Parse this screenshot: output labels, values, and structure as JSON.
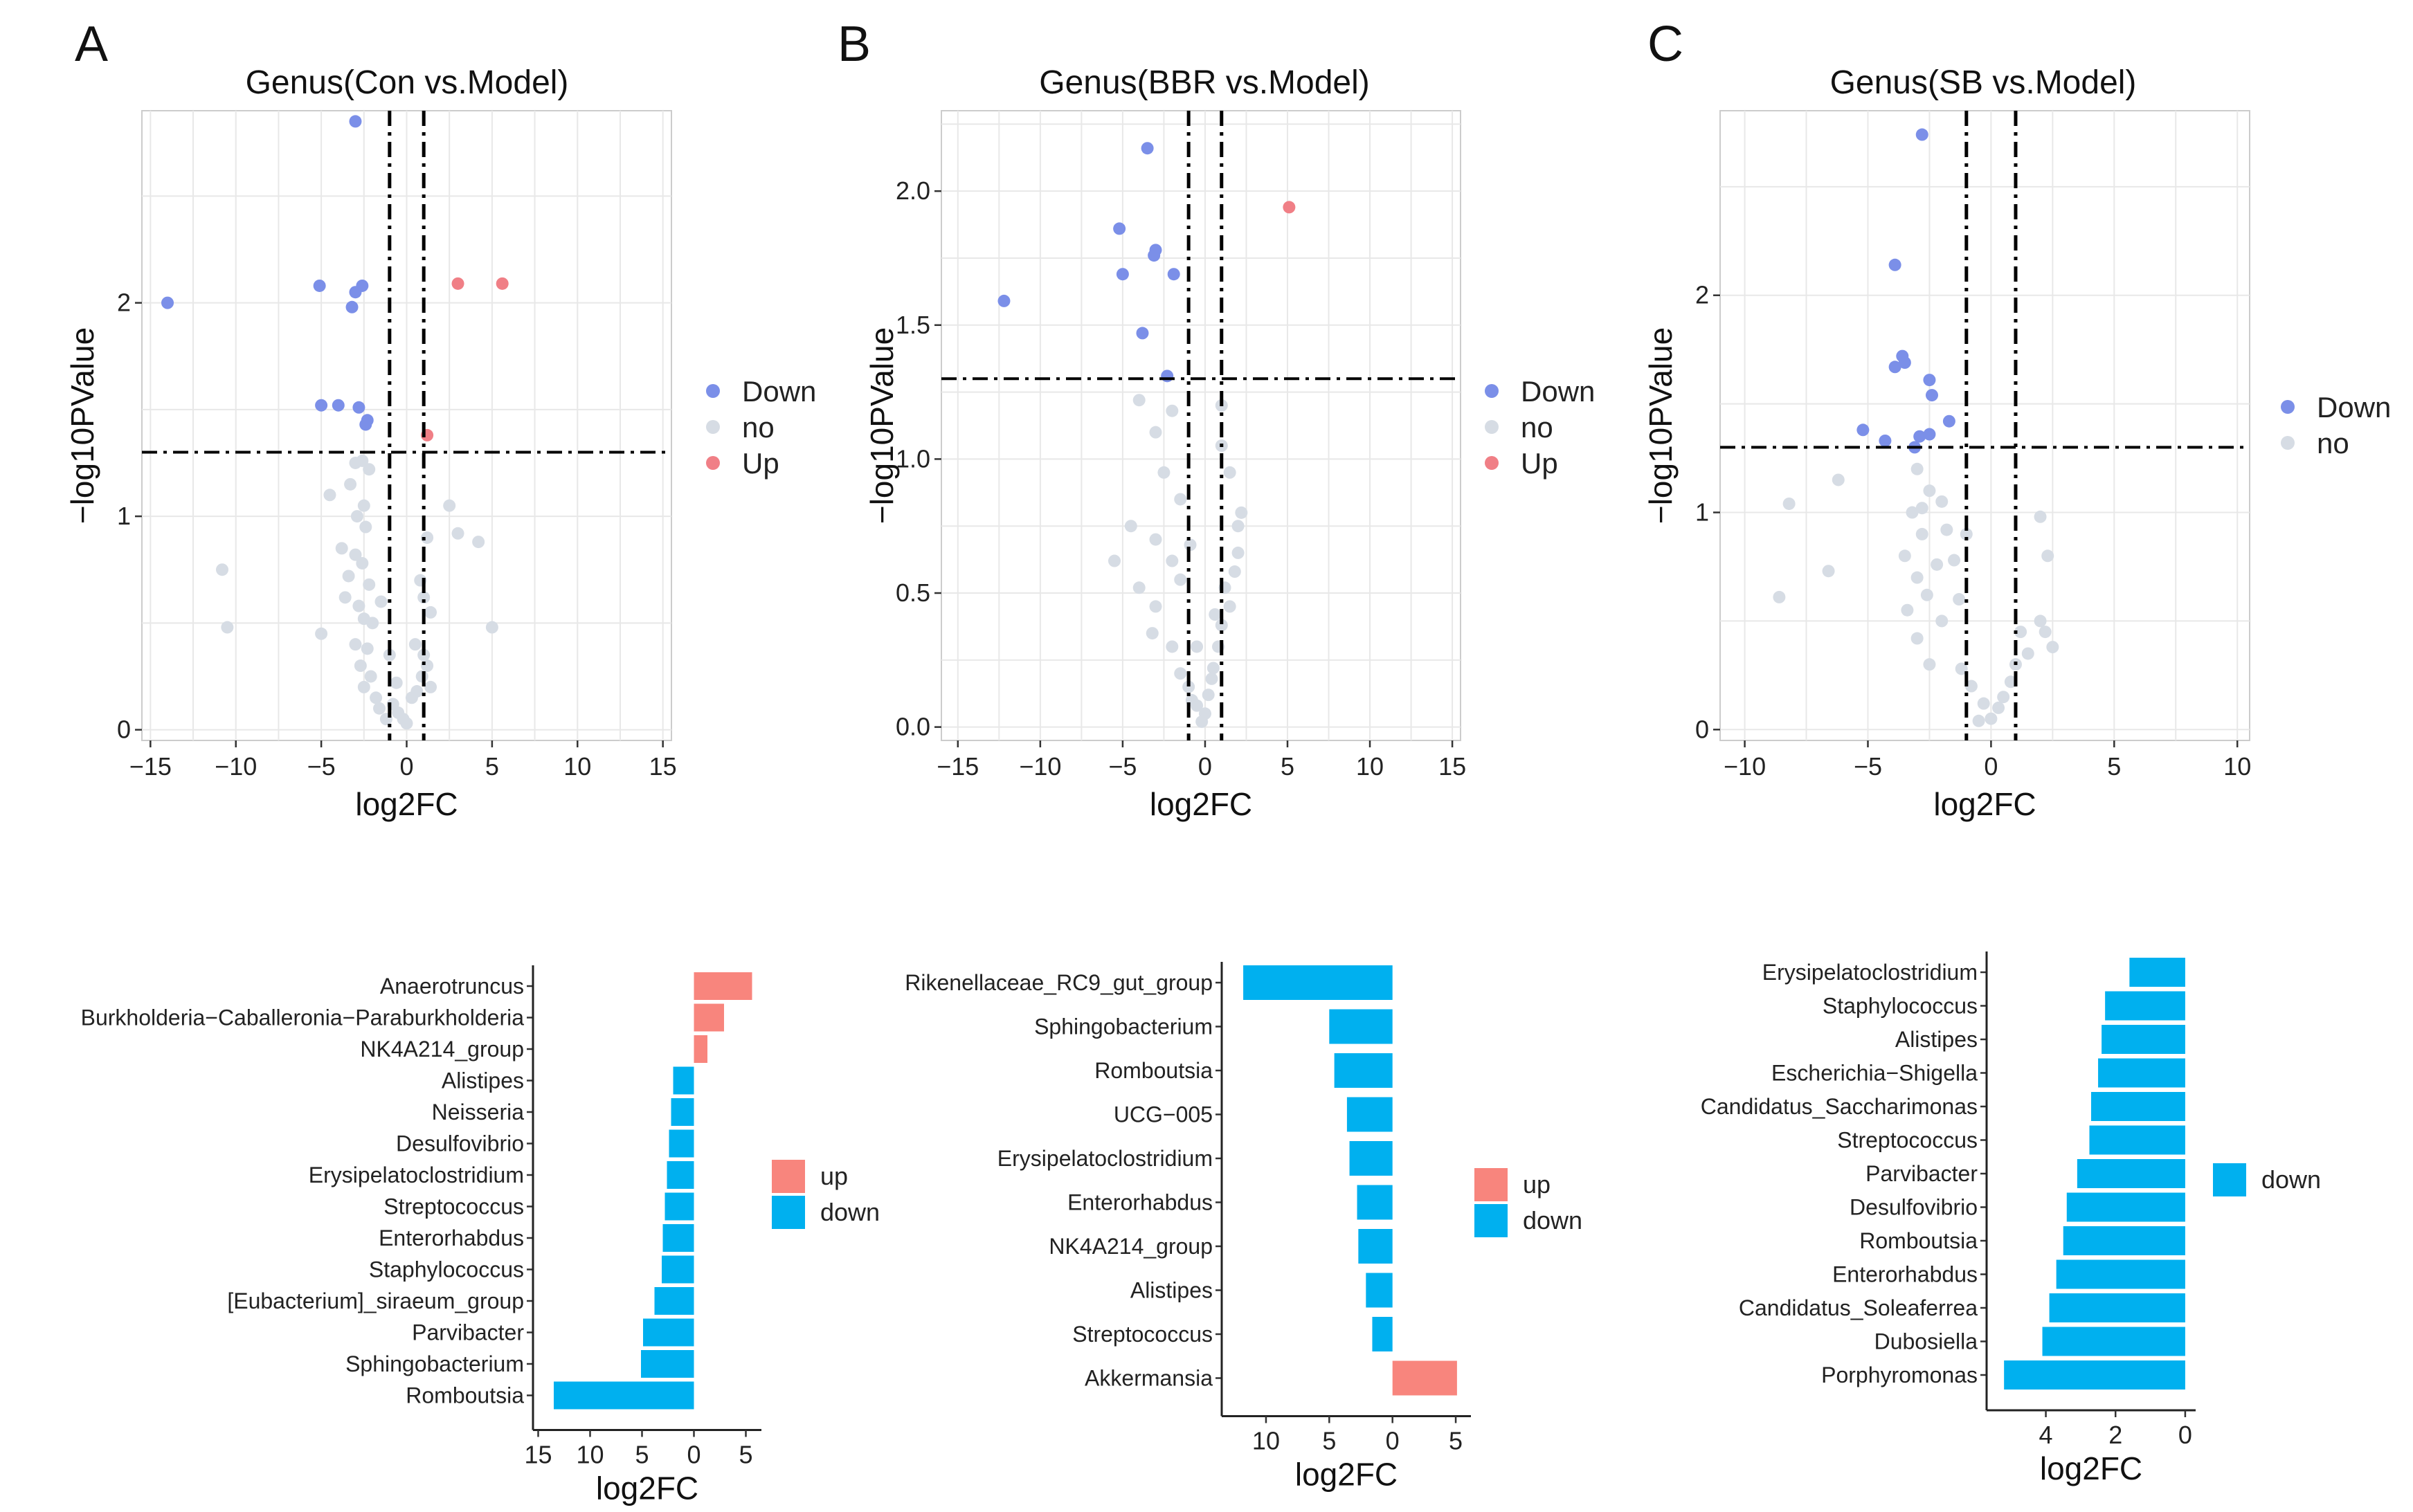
{
  "colors": {
    "down_point": "#7b8fe8",
    "no_point": "#d6dce4",
    "up_point": "#f07f86",
    "bar_down": "#00b0ef",
    "bar_up": "#f8857d",
    "grid": "#e8e8e8",
    "panel_border": "#cccccc"
  },
  "chart_data": [
    {
      "type": "scatter",
      "panel": "A",
      "title": "Genus(Con vs.Model)",
      "xlabel": "log2FC",
      "ylabel": "−log10PValue",
      "xlim": [
        -15.5,
        15.5
      ],
      "ylim": [
        -0.05,
        2.9
      ],
      "xticks": [
        -15,
        -10,
        -5,
        0,
        5,
        10,
        15
      ],
      "xtick_labels": [
        "−15",
        "−10",
        "−5",
        "0",
        "5",
        "10",
        "15"
      ],
      "yticks": [
        0,
        1,
        2
      ],
      "ytick_labels": [
        "0",
        "1",
        "2"
      ],
      "vlines": [
        -1,
        1
      ],
      "hline": 1.3,
      "legend": [
        {
          "key": "Down",
          "label": "Down"
        },
        {
          "key": "no",
          "label": "no"
        },
        {
          "key": "Up",
          "label": "Up"
        }
      ],
      "series": [
        {
          "name": "Down",
          "points": [
            [
              -3.0,
              2.85
            ],
            [
              -14.0,
              2.0
            ],
            [
              -5.1,
              2.08
            ],
            [
              -2.6,
              2.08
            ],
            [
              -3.0,
              2.05
            ],
            [
              -3.2,
              1.98
            ],
            [
              -5.0,
              1.52
            ],
            [
              -4.0,
              1.52
            ],
            [
              -2.8,
              1.51
            ],
            [
              -2.3,
              1.45
            ],
            [
              -2.4,
              1.43
            ]
          ]
        },
        {
          "name": "Up",
          "points": [
            [
              3.0,
              2.09
            ],
            [
              5.6,
              2.09
            ],
            [
              1.2,
              1.38
            ]
          ]
        },
        {
          "name": "no",
          "points": [
            [
              -3.0,
              1.25
            ],
            [
              -2.6,
              1.26
            ],
            [
              -2.2,
              1.22
            ],
            [
              -3.3,
              1.15
            ],
            [
              -2.5,
              1.05
            ],
            [
              -2.9,
              1.0
            ],
            [
              -2.4,
              0.95
            ],
            [
              -3.8,
              0.85
            ],
            [
              -3.0,
              0.82
            ],
            [
              -2.6,
              0.78
            ],
            [
              -3.4,
              0.72
            ],
            [
              -2.2,
              0.68
            ],
            [
              -3.6,
              0.62
            ],
            [
              -2.8,
              0.58
            ],
            [
              -2.5,
              0.52
            ],
            [
              -2.0,
              0.5
            ],
            [
              -3.0,
              0.4
            ],
            [
              -2.3,
              0.38
            ],
            [
              -2.7,
              0.3
            ],
            [
              -2.1,
              0.25
            ],
            [
              -2.5,
              0.2
            ],
            [
              -1.8,
              0.15
            ],
            [
              -1.6,
              0.1
            ],
            [
              -1.2,
              0.05
            ],
            [
              -0.8,
              0.12
            ],
            [
              -0.5,
              0.08
            ],
            [
              -0.2,
              0.05
            ],
            [
              0.0,
              0.03
            ],
            [
              0.3,
              0.15
            ],
            [
              0.6,
              0.18
            ],
            [
              0.9,
              0.25
            ],
            [
              1.2,
              0.3
            ],
            [
              1.0,
              0.35
            ],
            [
              1.4,
              0.2
            ],
            [
              1.0,
              0.62
            ],
            [
              1.2,
              0.9
            ],
            [
              1.4,
              0.55
            ],
            [
              2.5,
              1.05
            ],
            [
              3.0,
              0.92
            ],
            [
              4.2,
              0.88
            ],
            [
              5.0,
              0.48
            ],
            [
              -5.0,
              0.45
            ],
            [
              -10.5,
              0.48
            ],
            [
              -10.8,
              0.75
            ],
            [
              -4.5,
              1.1
            ],
            [
              -1.5,
              0.6
            ],
            [
              -1.0,
              0.35
            ],
            [
              -0.6,
              0.22
            ],
            [
              0.5,
              0.4
            ],
            [
              0.8,
              0.7
            ]
          ]
        }
      ]
    },
    {
      "type": "scatter",
      "panel": "B",
      "title": "Genus(BBR vs.Model)",
      "xlabel": "log2FC",
      "ylabel": "−log10PValue",
      "xlim": [
        -16,
        15.5
      ],
      "ylim": [
        -0.05,
        2.3
      ],
      "xticks": [
        -15,
        -10,
        -5,
        0,
        5,
        10,
        15
      ],
      "xtick_labels": [
        "−15",
        "−10",
        "−5",
        "0",
        "5",
        "10",
        "15"
      ],
      "yticks": [
        0.0,
        0.5,
        1.0,
        1.5,
        2.0
      ],
      "ytick_labels": [
        "0.0",
        "0.5",
        "1.0",
        "1.5",
        "2.0"
      ],
      "vlines": [
        -1,
        1
      ],
      "hline": 1.3,
      "legend": [
        {
          "key": "Down",
          "label": "Down"
        },
        {
          "key": "no",
          "label": "no"
        },
        {
          "key": "Up",
          "label": "Up"
        }
      ],
      "series": [
        {
          "name": "Down",
          "points": [
            [
              -3.5,
              2.16
            ],
            [
              -5.2,
              1.86
            ],
            [
              -3.0,
              1.78
            ],
            [
              -3.1,
              1.76
            ],
            [
              -12.2,
              1.59
            ],
            [
              -5.0,
              1.69
            ],
            [
              -1.9,
              1.69
            ],
            [
              -3.8,
              1.47
            ],
            [
              -2.3,
              1.31
            ]
          ]
        },
        {
          "name": "Up",
          "points": [
            [
              5.1,
              1.94
            ]
          ]
        },
        {
          "name": "no",
          "points": [
            [
              -4.0,
              1.22
            ],
            [
              -2.0,
              1.18
            ],
            [
              -3.0,
              1.1
            ],
            [
              -2.5,
              0.95
            ],
            [
              -1.5,
              0.85
            ],
            [
              -4.5,
              0.75
            ],
            [
              -3.0,
              0.7
            ],
            [
              -5.5,
              0.62
            ],
            [
              -2.0,
              0.62
            ],
            [
              -4.0,
              0.52
            ],
            [
              -3.0,
              0.45
            ],
            [
              -3.2,
              0.35
            ],
            [
              -2.0,
              0.3
            ],
            [
              -1.5,
              0.2
            ],
            [
              -1.0,
              0.15
            ],
            [
              -0.8,
              0.1
            ],
            [
              -0.5,
              0.08
            ],
            [
              0.0,
              0.05
            ],
            [
              -0.2,
              0.02
            ],
            [
              0.2,
              0.12
            ],
            [
              0.5,
              0.22
            ],
            [
              0.8,
              0.3
            ],
            [
              1.0,
              0.38
            ],
            [
              1.5,
              0.45
            ],
            [
              1.2,
              0.52
            ],
            [
              1.8,
              0.58
            ],
            [
              2.0,
              0.65
            ],
            [
              2.2,
              0.8
            ],
            [
              2.0,
              0.75
            ],
            [
              1.5,
              0.95
            ],
            [
              1.0,
              1.05
            ],
            [
              1.0,
              1.2
            ],
            [
              -1.5,
              0.55
            ],
            [
              -0.5,
              0.3
            ],
            [
              0.4,
              0.18
            ],
            [
              0.6,
              0.42
            ],
            [
              -0.9,
              0.68
            ]
          ]
        }
      ]
    },
    {
      "type": "scatter",
      "panel": "C",
      "title": "Genus(SB vs.Model)",
      "xlabel": "log2FC",
      "ylabel": "−log10PValue",
      "xlim": [
        -11,
        10.5
      ],
      "ylim": [
        -0.05,
        2.85
      ],
      "xticks": [
        -10,
        -5,
        0,
        5,
        10
      ],
      "xtick_labels": [
        "−10",
        "−5",
        "0",
        "5",
        "10"
      ],
      "yticks": [
        0,
        1,
        2
      ],
      "ytick_labels": [
        "0",
        "1",
        "2"
      ],
      "vlines": [
        -1,
        1
      ],
      "hline": 1.3,
      "legend": [
        {
          "key": "Down",
          "label": "Down"
        },
        {
          "key": "no",
          "label": "no"
        }
      ],
      "series": [
        {
          "name": "Down",
          "points": [
            [
              -2.8,
              2.74
            ],
            [
              -3.9,
              2.14
            ],
            [
              -3.6,
              1.72
            ],
            [
              -3.5,
              1.69
            ],
            [
              -3.9,
              1.67
            ],
            [
              -2.5,
              1.61
            ],
            [
              -2.4,
              1.54
            ],
            [
              -5.2,
              1.38
            ],
            [
              -2.9,
              1.35
            ],
            [
              -2.5,
              1.36
            ],
            [
              -4.3,
              1.33
            ],
            [
              -1.7,
              1.42
            ],
            [
              -3.1,
              1.3
            ]
          ]
        },
        {
          "name": "no",
          "points": [
            [
              -8.2,
              1.04
            ],
            [
              -6.2,
              1.15
            ],
            [
              -8.6,
              0.61
            ],
            [
              -6.6,
              0.73
            ],
            [
              -3.0,
              1.2
            ],
            [
              -2.5,
              1.1
            ],
            [
              -2.0,
              1.05
            ],
            [
              -3.2,
              1.0
            ],
            [
              -2.8,
              0.9
            ],
            [
              -1.8,
              0.92
            ],
            [
              -3.5,
              0.8
            ],
            [
              -2.2,
              0.76
            ],
            [
              -3.0,
              0.7
            ],
            [
              -1.5,
              0.78
            ],
            [
              -2.6,
              0.62
            ],
            [
              -3.4,
              0.55
            ],
            [
              -2.0,
              0.5
            ],
            [
              -3.0,
              0.42
            ],
            [
              -2.5,
              0.3
            ],
            [
              -1.2,
              0.28
            ],
            [
              -0.8,
              0.2
            ],
            [
              -0.3,
              0.12
            ],
            [
              0.0,
              0.05
            ],
            [
              0.3,
              0.1
            ],
            [
              -0.5,
              0.04
            ],
            [
              0.8,
              0.22
            ],
            [
              1.0,
              0.3
            ],
            [
              1.5,
              0.35
            ],
            [
              1.2,
              0.45
            ],
            [
              2.0,
              0.5
            ],
            [
              2.2,
              0.45
            ],
            [
              2.5,
              0.38
            ],
            [
              2.3,
              0.8
            ],
            [
              2.0,
              0.98
            ],
            [
              -1.3,
              0.6
            ],
            [
              -1.0,
              0.9
            ],
            [
              -2.8,
              1.02
            ],
            [
              0.5,
              0.15
            ]
          ]
        }
      ]
    },
    {
      "type": "bar",
      "panel": "A-bar",
      "orientation": "horizontal",
      "xlabel": "log2FC",
      "xlim": [
        -15.5,
        6.5
      ],
      "xticks": [
        -15,
        -10,
        -5,
        0,
        5
      ],
      "xtick_labels": [
        "15",
        "10",
        "5",
        "0",
        "5"
      ],
      "categories": [
        "Anaerotruncus",
        "Burkholderia−Caballeronia−Paraburkholderia",
        "NK4A214_group",
        "Alistipes",
        "Neisseria",
        "Desulfovibrio",
        "Erysipelatoclostridium",
        "Streptococcus",
        "Enterorhabdus",
        "Staphylococcus",
        "[Eubacterium]_siraeum_group",
        "Parvibacter",
        "Sphingobacterium",
        "Romboutsia"
      ],
      "values": [
        5.6,
        2.9,
        1.3,
        -2.0,
        -2.2,
        -2.4,
        -2.6,
        -2.8,
        -3.0,
        -3.1,
        -3.8,
        -4.9,
        -5.1,
        -13.5
      ],
      "legend": [
        {
          "key": "up",
          "label": "up"
        },
        {
          "key": "down",
          "label": "down"
        }
      ]
    },
    {
      "type": "bar",
      "panel": "B-bar",
      "orientation": "horizontal",
      "xlabel": "log2FC",
      "xlim": [
        -13.5,
        6.2
      ],
      "xticks": [
        -10,
        -5,
        0,
        5
      ],
      "xtick_labels": [
        "10",
        "5",
        "0",
        "5"
      ],
      "categories": [
        "Rikenellaceae_RC9_gut_group",
        "Sphingobacterium",
        "Romboutsia",
        "UCG−005",
        "Erysipelatoclostridium",
        "Enterorhabdus",
        "NK4A214_group",
        "Alistipes",
        "Streptococcus",
        "Akkermansia"
      ],
      "values": [
        -11.8,
        -5.0,
        -4.6,
        -3.6,
        -3.4,
        -2.8,
        -2.7,
        -2.1,
        -1.6,
        5.1
      ],
      "legend": [
        {
          "key": "up",
          "label": "up"
        },
        {
          "key": "down",
          "label": "down"
        }
      ]
    },
    {
      "type": "bar",
      "panel": "C-bar",
      "orientation": "horizontal",
      "xlabel": "log2FC",
      "xlim": [
        -5.7,
        0.3
      ],
      "xticks": [
        -4,
        -2,
        0
      ],
      "xtick_labels": [
        "4",
        "2",
        "0"
      ],
      "categories": [
        "Erysipelatoclostridium",
        "Staphylococcus",
        "Alistipes",
        "Escherichia−Shigella",
        "Candidatus_Saccharimonas",
        "Streptococcus",
        "Parvibacter",
        "Desulfovibrio",
        "Romboutsia",
        "Enterorhabdus",
        "Candidatus_Soleaferrea",
        "Dubosiella",
        "Porphyromonas"
      ],
      "values": [
        -1.6,
        -2.3,
        -2.4,
        -2.5,
        -2.7,
        -2.75,
        -3.1,
        -3.4,
        -3.5,
        -3.7,
        -3.9,
        -4.1,
        -5.2
      ],
      "legend": [
        {
          "key": "down",
          "label": "down"
        }
      ]
    }
  ],
  "panel_letters": [
    "A",
    "B",
    "C"
  ]
}
